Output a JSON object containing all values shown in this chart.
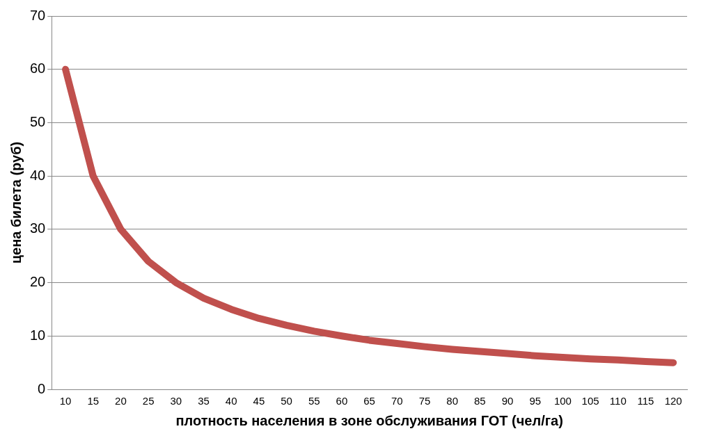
{
  "chart_data": {
    "type": "line",
    "xlabel": "плотность населения в зоне обслуживания ГОТ (чел/га)",
    "ylabel": "цена билета (руб)",
    "categories": [
      "10",
      "15",
      "20",
      "25",
      "30",
      "35",
      "40",
      "45",
      "50",
      "55",
      "60",
      "65",
      "70",
      "75",
      "80",
      "85",
      "90",
      "95",
      "100",
      "105",
      "110",
      "115",
      "120"
    ],
    "series": [
      {
        "color": "#c0504d",
        "values": [
          60,
          40,
          30,
          24,
          20,
          17.1,
          15,
          13.3,
          12,
          10.9,
          10,
          9.2,
          8.6,
          8,
          7.5,
          7.1,
          6.7,
          6.3,
          6,
          5.7,
          5.5,
          5.2,
          5
        ]
      }
    ],
    "ylim": [
      0,
      70
    ],
    "yticks": [
      0,
      10,
      20,
      30,
      40,
      50,
      60,
      70
    ],
    "grid": "y",
    "legend": false,
    "marker": "none",
    "line_style": "solid"
  }
}
